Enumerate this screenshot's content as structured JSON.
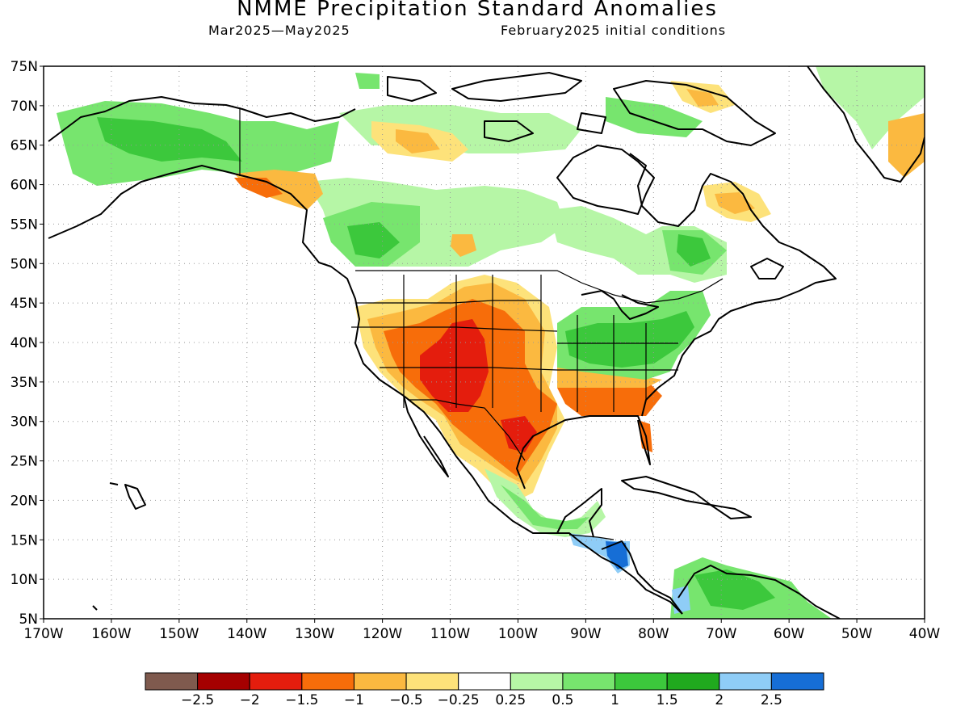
{
  "title": "NMME Precipitation Standard Anomalies",
  "period": "Mar2025—May2025",
  "initial_conditions": "February2025 initial conditions",
  "lat_labels": [
    "75N",
    "70N",
    "65N",
    "60N",
    "55N",
    "50N",
    "45N",
    "40N",
    "35N",
    "30N",
    "25N",
    "20N",
    "15N",
    "10N",
    "5N"
  ],
  "lon_labels": [
    "170W",
    "160W",
    "150W",
    "140W",
    "130W",
    "120W",
    "110W",
    "100W",
    "90W",
    "80W",
    "70W",
    "60W",
    "50W",
    "40W"
  ],
  "map_extent": {
    "lon": [
      -170,
      -40
    ],
    "lat": [
      5,
      75
    ]
  },
  "colorbar": {
    "colors": [
      "#7f5a4e",
      "#a50000",
      "#e41d0d",
      "#f76d0a",
      "#fbb940",
      "#fde27a",
      "#ffffff",
      "#b6f6a6",
      "#77e56e",
      "#3cc83c",
      "#20a91e",
      "#8fcdf7",
      "#166ed6"
    ],
    "labels": [
      "−2.5",
      "−2",
      "−1.5",
      "−1",
      "−0.5",
      "−0.25",
      "0.25",
      "0.5",
      "1",
      "1.5",
      "2",
      "2.5"
    ]
  }
}
